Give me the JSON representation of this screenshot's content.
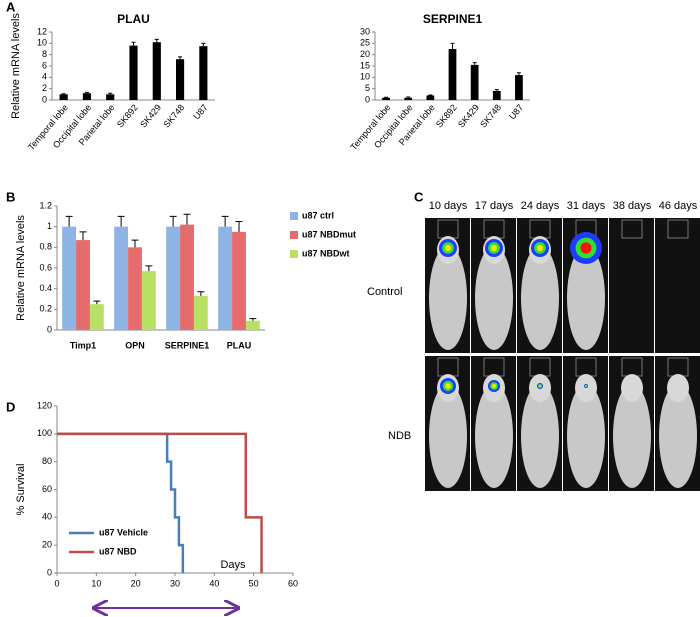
{
  "chart_data": [
    {
      "type": "bar",
      "panel": "A",
      "title": "PLAU",
      "ylabel": "Relative mRNA levels",
      "categories": [
        "Temporal lobe",
        "Occipital lobe",
        "Parietal lobe",
        "SK892",
        "SK429",
        "SK748",
        "U87"
      ],
      "values": [
        1.0,
        1.2,
        1.0,
        9.6,
        10.2,
        7.2,
        9.5
      ],
      "errors": [
        0.1,
        0.15,
        0.2,
        0.6,
        0.5,
        0.4,
        0.5
      ],
      "color": "#000000",
      "ylim": [
        0,
        12
      ],
      "yticks": [
        0,
        2,
        4,
        6,
        8,
        10,
        12
      ],
      "rotate_labels": true
    },
    {
      "type": "bar",
      "title": "SERPINE1",
      "categories": [
        "Temporal lobe",
        "Occipital lobe",
        "Parietal lobe",
        "SK892",
        "SK429",
        "SK748",
        "U87"
      ],
      "values": [
        1.0,
        1.0,
        2.0,
        22.5,
        15.5,
        4.0,
        11.0
      ],
      "errors": [
        0.2,
        0.3,
        0.2,
        2.5,
        1.0,
        0.6,
        1.0
      ],
      "color": "#000000",
      "ylim": [
        0,
        30
      ],
      "yticks": [
        0,
        5,
        10,
        15,
        20,
        25,
        30
      ],
      "rotate_labels": true
    },
    {
      "type": "bar",
      "panel": "B",
      "ylabel": "Relative mRNA levels",
      "categories": [
        "Timp1",
        "OPN",
        "SERPINE1",
        "PLAU"
      ],
      "series": [
        {
          "name": "u87 ctrl",
          "color": "#8db4e2",
          "values": [
            1,
            1,
            1,
            1
          ],
          "errors": [
            0.1,
            0.1,
            0.1,
            0.1
          ]
        },
        {
          "name": "u87 NBDmut",
          "color": "#e46c6c",
          "values": [
            0.87,
            0.8,
            1.02,
            0.95
          ],
          "errors": [
            0.08,
            0.07,
            0.1,
            0.1
          ]
        },
        {
          "name": "u87 NBDwt",
          "color": "#b8e065",
          "values": [
            0.25,
            0.57,
            0.33,
            0.09
          ],
          "errors": [
            0.03,
            0.05,
            0.04,
            0.02
          ]
        }
      ],
      "ylim": [
        0,
        1.2
      ],
      "yticks": [
        0,
        0.2,
        0.4,
        0.6,
        0.8,
        1,
        1.2
      ],
      "legend": "right"
    },
    {
      "type": "line",
      "panel": "D",
      "ylabel": "% Survival",
      "xlabel": "Days",
      "series": [
        {
          "name": "u87 Vehicle",
          "color": "#4a7ebb",
          "x": [
            0,
            28,
            28,
            29,
            29,
            30,
            30,
            31,
            31,
            32,
            32
          ],
          "values": [
            100,
            100,
            80,
            80,
            60,
            60,
            40,
            40,
            20,
            20,
            0
          ]
        },
        {
          "name": "u87 NBD",
          "color": "#be4b48",
          "x": [
            0,
            48,
            48,
            52,
            52
          ],
          "values": [
            100,
            100,
            40,
            40,
            0
          ]
        }
      ],
      "xlim": [
        0,
        60
      ],
      "xticks": [
        0,
        10,
        20,
        30,
        40,
        50,
        60
      ],
      "ylim": [
        0,
        120
      ],
      "yticks": [
        0,
        20,
        40,
        60,
        80,
        100,
        120
      ],
      "legend": "lower left"
    }
  ],
  "imaging": {
    "panel": "C",
    "columns": [
      "10 days",
      "17 days",
      "24 days",
      "31 days",
      "38 days",
      "46 days"
    ],
    "rows": [
      "Control",
      "NDB"
    ]
  }
}
